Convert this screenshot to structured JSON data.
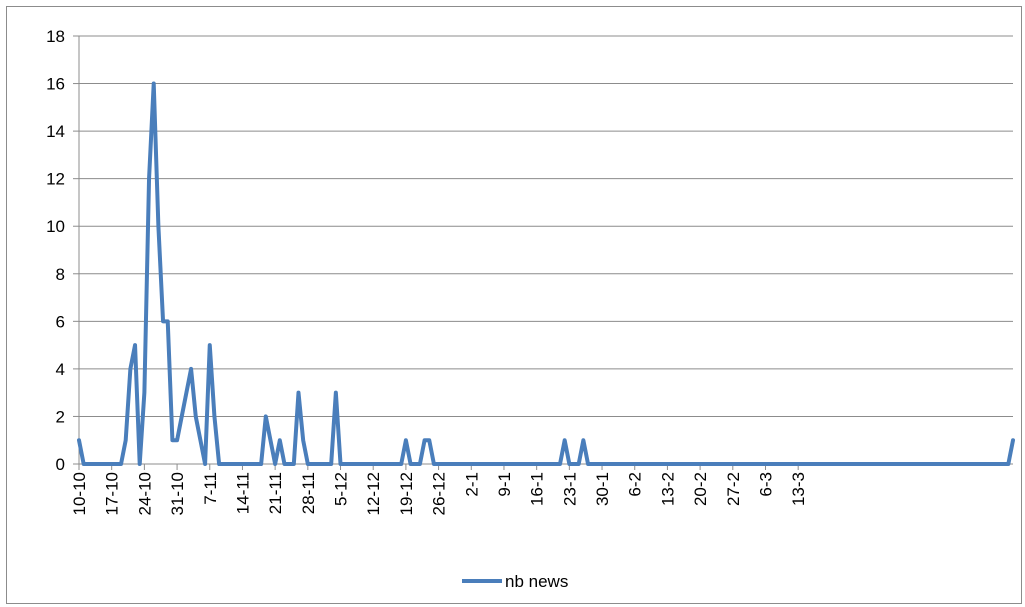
{
  "chart_data": {
    "type": "line",
    "title": "",
    "xlabel": "",
    "ylabel": "",
    "ylim": [
      0,
      18
    ],
    "yticks": [
      0,
      2,
      4,
      6,
      8,
      10,
      12,
      14,
      16,
      18
    ],
    "grid": "horizontal",
    "legend": "bottom",
    "x_tick_labels": [
      "10-10",
      "17-10",
      "24-10",
      "31-10",
      "7-11",
      "14-11",
      "21-11",
      "28-11",
      "5-12",
      "12-12",
      "19-12",
      "26-12",
      "2-1",
      "9-1",
      "16-1",
      "23-1",
      "30-1",
      "6-2",
      "13-2",
      "20-2",
      "27-2",
      "6-3",
      "13-3"
    ],
    "series": [
      {
        "name": "nb news",
        "color": "#4a7ebb",
        "values": [
          1,
          0,
          0,
          0,
          0,
          0,
          0,
          0,
          0,
          0,
          1,
          4,
          5,
          0,
          3,
          12,
          16,
          10,
          6,
          6,
          1,
          1,
          2,
          3,
          4,
          2,
          1,
          0,
          5,
          2,
          0,
          0,
          0,
          0,
          0,
          0,
          0,
          0,
          0,
          0,
          2,
          1,
          0,
          1,
          0,
          0,
          0,
          3,
          1,
          0,
          0,
          0,
          0,
          0,
          0,
          3,
          0,
          0,
          0,
          0,
          0,
          0,
          0,
          0,
          0,
          0,
          0,
          0,
          0,
          0,
          1,
          0,
          0,
          0,
          1,
          1,
          0,
          0,
          0,
          0,
          0,
          0,
          0,
          0,
          0,
          0,
          0,
          0,
          0,
          0,
          0,
          0,
          0,
          0,
          0,
          0,
          0,
          0,
          0,
          0,
          0,
          0,
          0,
          0,
          1,
          0,
          0,
          0,
          1,
          0,
          0,
          0,
          0,
          0,
          0,
          0,
          0,
          0,
          0,
          0,
          0,
          0,
          0,
          0,
          0,
          0,
          0,
          0,
          0,
          0,
          0,
          0,
          0,
          0,
          0,
          0,
          0,
          0,
          0,
          0,
          0,
          0,
          0,
          0,
          0,
          0,
          0,
          0,
          0,
          0,
          0,
          0,
          0,
          0,
          0,
          0,
          0,
          0,
          0,
          0,
          0,
          0,
          0,
          0,
          0,
          0,
          0,
          0,
          0,
          0,
          0,
          0,
          0,
          0,
          0,
          0,
          0,
          0,
          0,
          0,
          0,
          0,
          0,
          0,
          0,
          0,
          0,
          0,
          0,
          0,
          0,
          0,
          0,
          0,
          0,
          0,
          0,
          0,
          0,
          0,
          1
        ]
      }
    ]
  }
}
